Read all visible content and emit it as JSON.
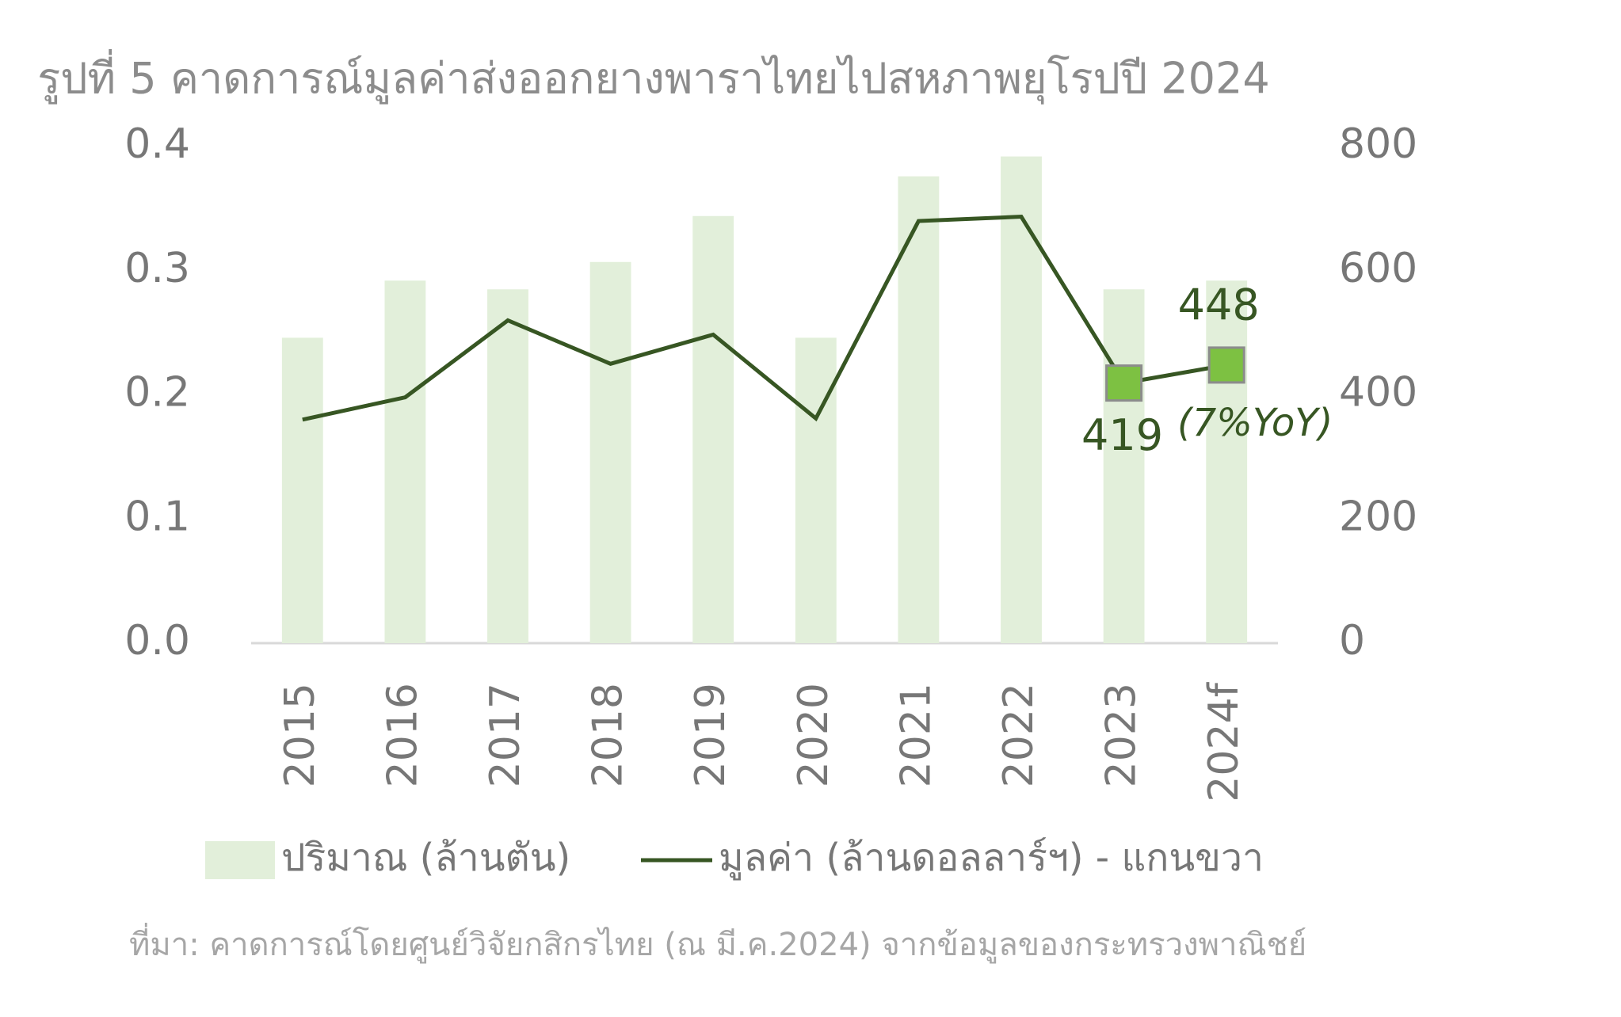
{
  "chart_data": {
    "type": "bar-line",
    "title": "รูปที่ 5 คาดการณ์มูลค่าส่งออกยางพาราไทยไปสหภาพยุโรปปี 2024",
    "categories": [
      "2015",
      "2016",
      "2017",
      "2018",
      "2019",
      "2020",
      "2021",
      "2022",
      "2023",
      "2024f"
    ],
    "series": [
      {
        "name": "ปริมาณ (ล้านตัน)",
        "type": "bar",
        "axis": "y",
        "color": "#e2efda",
        "values": [
          0.246,
          0.292,
          0.285,
          0.307,
          0.344,
          0.246,
          0.376,
          0.392,
          0.285,
          0.292
        ]
      },
      {
        "name": "มูลค่า (ล้านดอลลาร์ฯ) - แกนขวา",
        "type": "line",
        "axis": "y2",
        "color": "#375623",
        "marker_color": "#7dc142",
        "values": [
          360,
          396,
          520,
          450,
          497,
          362,
          680,
          687,
          419,
          448
        ],
        "value_labels": [
          null,
          null,
          null,
          null,
          null,
          null,
          null,
          null,
          "419",
          "448"
        ]
      }
    ],
    "ylim": [
      0,
      0.4
    ],
    "yticks": [
      {
        "value": 0,
        "label": "0.0"
      },
      0.1,
      0.2,
      0.3,
      0.4
    ],
    "y2lim": [
      0,
      800
    ],
    "y2ticks": [
      0,
      200,
      400,
      600,
      800
    ],
    "annotation": "(7%YoY)",
    "legend": "bottom",
    "source": "ที่มา: คาดการณ์โดยศูนย์วิจัยกสิกรไทย (ณ มี.ค.2024) จากข้อมูลของกระทรวงพาณิชย์"
  }
}
